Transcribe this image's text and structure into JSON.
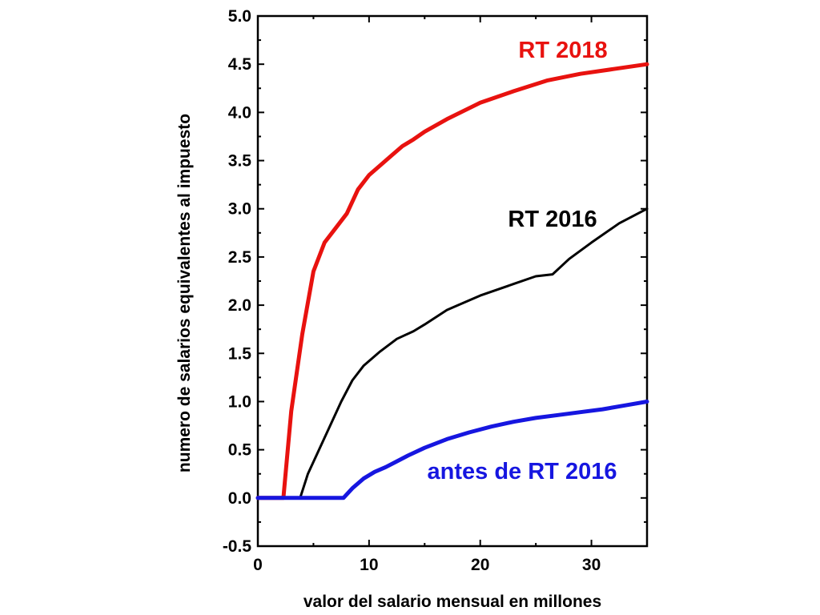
{
  "chart_data": {
    "type": "line",
    "title": "",
    "xlabel": "valor del salario mensual en millones",
    "ylabel": "numero de salarios equivalentes al impuesto",
    "xlim": [
      0,
      35
    ],
    "ylim": [
      -0.5,
      5.0
    ],
    "x_ticks": [
      0,
      10,
      20,
      30
    ],
    "x_tick_labels": [
      "0",
      "10",
      "20",
      "30"
    ],
    "y_ticks": [
      -0.5,
      0.0,
      0.5,
      1.0,
      1.5,
      2.0,
      2.5,
      3.0,
      3.5,
      4.0,
      4.5,
      5.0
    ],
    "y_tick_labels": [
      "-0.5",
      "0.0",
      "0.5",
      "1.0",
      "1.5",
      "2.0",
      "2.5",
      "3.0",
      "3.5",
      "4.0",
      "4.5",
      "5.0"
    ],
    "grid": false,
    "series": [
      {
        "name": "RT 2018",
        "color": "#e8120f",
        "points": [
          [
            0,
            0
          ],
          [
            2.3,
            0
          ],
          [
            3,
            0.9
          ],
          [
            4,
            1.7
          ],
          [
            5,
            2.35
          ],
          [
            6,
            2.65
          ],
          [
            7,
            2.8
          ],
          [
            8,
            2.95
          ],
          [
            9,
            3.2
          ],
          [
            10,
            3.35
          ],
          [
            11,
            3.45
          ],
          [
            12,
            3.55
          ],
          [
            13,
            3.65
          ],
          [
            14,
            3.72
          ],
          [
            15,
            3.8
          ],
          [
            17,
            3.93
          ],
          [
            20,
            4.1
          ],
          [
            23,
            4.22
          ],
          [
            26,
            4.33
          ],
          [
            29,
            4.4
          ],
          [
            32,
            4.45
          ],
          [
            35,
            4.5
          ]
        ]
      },
      {
        "name": "RT 2016",
        "color": "#000000",
        "points": [
          [
            0,
            0
          ],
          [
            3.8,
            0
          ],
          [
            4.5,
            0.25
          ],
          [
            5.5,
            0.5
          ],
          [
            6.5,
            0.75
          ],
          [
            7.5,
            1.0
          ],
          [
            8.5,
            1.22
          ],
          [
            9.5,
            1.37
          ],
          [
            11,
            1.52
          ],
          [
            12.5,
            1.65
          ],
          [
            14,
            1.73
          ],
          [
            15,
            1.8
          ],
          [
            17,
            1.95
          ],
          [
            20,
            2.1
          ],
          [
            23,
            2.22
          ],
          [
            25,
            2.3
          ],
          [
            26.5,
            2.32
          ],
          [
            28,
            2.48
          ],
          [
            30,
            2.65
          ],
          [
            32.5,
            2.85
          ],
          [
            35,
            3.0
          ]
        ]
      },
      {
        "name": "antes de RT 2016",
        "color": "#1616e0",
        "points": [
          [
            0,
            0
          ],
          [
            7.7,
            0
          ],
          [
            8.5,
            0.1
          ],
          [
            9.5,
            0.2
          ],
          [
            10.5,
            0.27
          ],
          [
            11.5,
            0.32
          ],
          [
            12.5,
            0.38
          ],
          [
            13.5,
            0.44
          ],
          [
            15,
            0.52
          ],
          [
            17,
            0.61
          ],
          [
            19,
            0.68
          ],
          [
            21,
            0.74
          ],
          [
            23,
            0.79
          ],
          [
            25,
            0.83
          ],
          [
            27,
            0.86
          ],
          [
            29,
            0.89
          ],
          [
            31,
            0.92
          ],
          [
            33,
            0.96
          ],
          [
            35,
            1.0
          ]
        ]
      }
    ]
  }
}
